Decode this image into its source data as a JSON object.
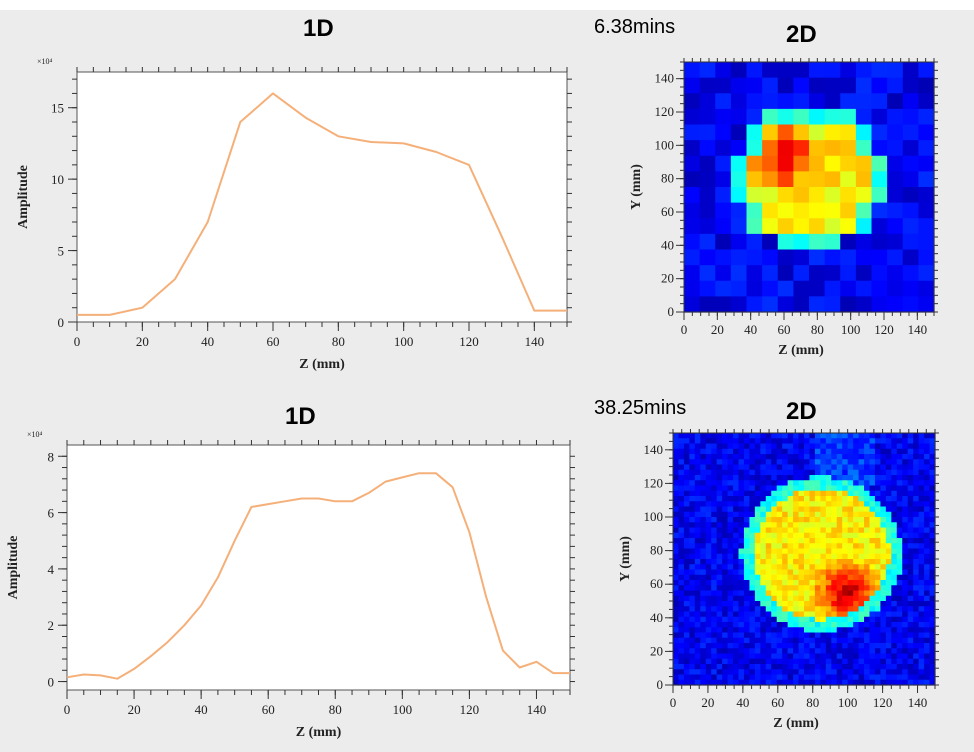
{
  "panels": {
    "top_1d_title": "1D",
    "top_2d_title": "2D",
    "top_time": "6.38mins",
    "bottom_1d_title": "1D",
    "bottom_2d_title": "2D",
    "bottom_time": "38.25mins"
  },
  "colors": {
    "line": "#f5b07a",
    "heat_bg": "#00006a"
  },
  "chart_data": [
    {
      "id": "top-1d",
      "type": "line",
      "title": "1D",
      "xlabel": "Z (mm)",
      "ylabel": "Amplitude",
      "exponent": "×10⁴",
      "xlim": [
        0,
        150
      ],
      "ylim": [
        0,
        17.5
      ],
      "xticks": [
        0,
        20,
        40,
        60,
        80,
        100,
        120,
        140
      ],
      "yticks": [
        0,
        5,
        10,
        15
      ],
      "x": [
        0,
        10,
        20,
        30,
        40,
        50,
        60,
        70,
        80,
        90,
        100,
        110,
        120,
        130,
        140,
        150
      ],
      "y": [
        0.5,
        0.5,
        1.0,
        3.0,
        7.0,
        14.0,
        16.0,
        14.3,
        13.0,
        12.6,
        12.5,
        11.9,
        11.0,
        6.0,
        0.8,
        0.8
      ]
    },
    {
      "id": "bottom-1d",
      "type": "line",
      "title": "1D",
      "xlabel": "Z (mm)",
      "ylabel": "Amplitude",
      "exponent": "×10⁴",
      "xlim": [
        0,
        150
      ],
      "ylim": [
        -0.3,
        8.4
      ],
      "xticks": [
        0,
        20,
        40,
        60,
        80,
        100,
        120,
        140
      ],
      "yticks": [
        0,
        2,
        4,
        6,
        8
      ],
      "x": [
        0,
        5,
        10,
        15,
        20,
        25,
        30,
        35,
        40,
        45,
        50,
        55,
        60,
        65,
        70,
        75,
        80,
        85,
        90,
        95,
        100,
        105,
        110,
        115,
        120,
        125,
        130,
        135,
        140,
        145,
        150
      ],
      "y": [
        0.15,
        0.25,
        0.22,
        0.1,
        0.45,
        0.9,
        1.4,
        2.0,
        2.7,
        3.7,
        5.0,
        6.2,
        6.3,
        6.4,
        6.5,
        6.5,
        6.4,
        6.4,
        6.7,
        7.1,
        7.25,
        7.4,
        7.4,
        6.9,
        5.3,
        3.0,
        1.1,
        0.5,
        0.7,
        0.3,
        0.3
      ]
    },
    {
      "id": "top-2d",
      "type": "heatmap",
      "title": "2D",
      "xlabel": "Z (mm)",
      "ylabel": "Y (mm)",
      "xlim": [
        0,
        150
      ],
      "ylim": [
        0,
        150
      ],
      "ticks": [
        0,
        20,
        40,
        60,
        80,
        100,
        120,
        140
      ],
      "grid_cells": 16,
      "blob": {
        "cx": 75,
        "cy": 80,
        "r": 40,
        "hot_z": 60,
        "hot_y": 92
      }
    },
    {
      "id": "bottom-2d",
      "type": "heatmap",
      "title": "2D",
      "xlabel": "Z (mm)",
      "ylabel": "Y (mm)",
      "xlim": [
        0,
        150
      ],
      "ylim": [
        0,
        150
      ],
      "ticks": [
        0,
        20,
        40,
        60,
        80,
        100,
        120,
        140
      ],
      "grid_cells": 48,
      "blob": {
        "cx": 85,
        "cy": 78,
        "r": 42,
        "hot_z": 100,
        "hot_y": 55
      }
    }
  ]
}
